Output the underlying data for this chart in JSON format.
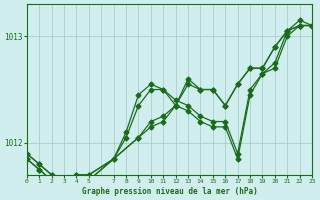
{
  "title": "Graphe pression niveau de la mer (hPa)",
  "background_color": "#d0eeee",
  "grid_color": "#a0c8c8",
  "line_color": "#1a6b1a",
  "xlim": [
    0,
    23
  ],
  "ylim": [
    1011.7,
    1013.3
  ],
  "yticks": [
    1012,
    1013
  ],
  "xticks": [
    0,
    1,
    2,
    3,
    4,
    5,
    7,
    8,
    9,
    10,
    11,
    12,
    13,
    14,
    15,
    16,
    17,
    18,
    19,
    20,
    21,
    22,
    23
  ],
  "series": [
    [
      1011.85,
      1011.75,
      1011.65,
      1011.6,
      1011.65,
      1011.65,
      null,
      null,
      null,
      1012.05,
      1012.15,
      1012.2,
      1012.35,
      1012.55,
      1012.5,
      1012.5,
      1012.35,
      1012.55,
      1012.7,
      1012.7,
      1012.9,
      1013.05,
      1013.1,
      1013.1
    ],
    [
      1011.85,
      1011.75,
      1011.65,
      1011.6,
      1011.65,
      1011.65,
      null,
      null,
      null,
      1012.05,
      1012.2,
      1012.25,
      1012.35,
      1012.6,
      1012.5,
      1012.5,
      1012.35,
      1012.55,
      1012.7,
      1012.7,
      1012.9,
      1013.05,
      1013.1,
      1013.1
    ],
    [
      1011.9,
      1011.8,
      1011.7,
      1011.65,
      1011.7,
      1011.7,
      null,
      1011.85,
      1012.05,
      1012.35,
      1012.5,
      1012.5,
      1012.35,
      1012.3,
      1012.2,
      1012.15,
      1012.15,
      1011.85,
      1012.45,
      1012.65,
      1012.7,
      1013.0,
      1013.1,
      1013.1
    ],
    [
      1011.9,
      1011.8,
      1011.7,
      1011.65,
      1011.7,
      1011.7,
      null,
      1011.85,
      1012.1,
      1012.45,
      1012.55,
      1012.5,
      1012.4,
      1012.35,
      1012.25,
      1012.2,
      1012.2,
      1011.9,
      1012.5,
      1012.65,
      1012.75,
      1013.05,
      1013.15,
      1013.1
    ]
  ]
}
